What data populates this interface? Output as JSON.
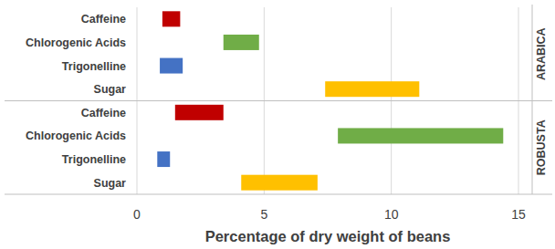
{
  "chart_data": {
    "type": "bar",
    "orientation": "horizontal",
    "x_label": "Percentage of dry weight of beans",
    "xlim": [
      0,
      15
    ],
    "xticks": [
      0,
      5,
      10,
      15
    ],
    "grid": true,
    "series": [
      {
        "name": "ARABICA",
        "categories": [
          "Caffeine",
          "Chlorogenic Acids",
          "Trigonelline",
          "Sugar"
        ],
        "values": [
          [
            1.0,
            1.7
          ],
          [
            3.4,
            4.8
          ],
          [
            0.9,
            1.8
          ],
          [
            7.4,
            11.1
          ]
        ],
        "colors": [
          "#c00000",
          "#70ad47",
          "#4472c4",
          "#ffc000"
        ]
      },
      {
        "name": "ROBUSTA",
        "categories": [
          "Caffeine",
          "Chlorogenic Acids",
          "Trigonelline",
          "Sugar"
        ],
        "values": [
          [
            1.5,
            3.4
          ],
          [
            7.9,
            14.4
          ],
          [
            0.8,
            1.3
          ],
          [
            4.1,
            7.1
          ]
        ],
        "colors": [
          "#c00000",
          "#70ad47",
          "#4472c4",
          "#ffc000"
        ]
      }
    ]
  }
}
